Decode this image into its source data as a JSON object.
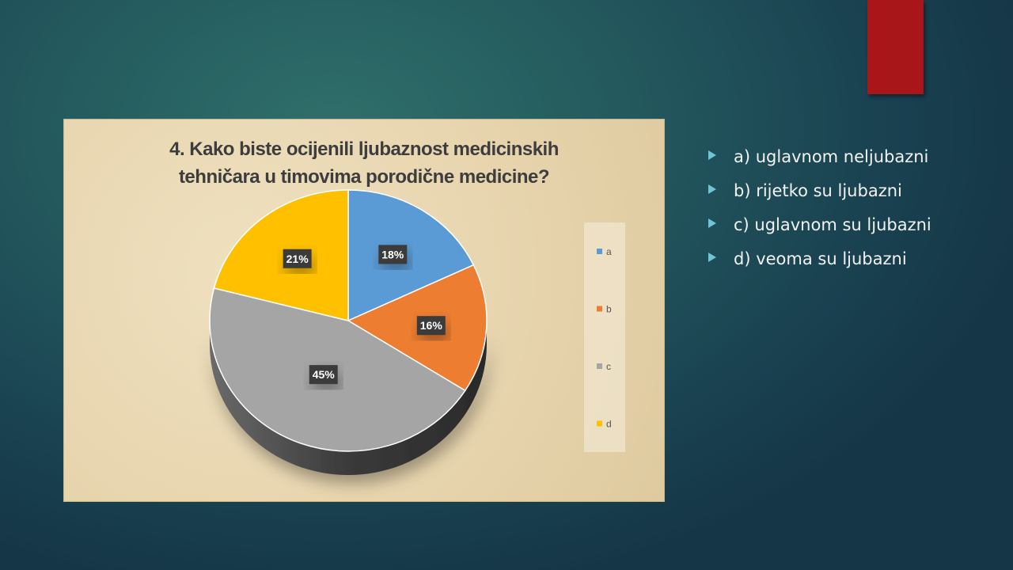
{
  "slide": {
    "accent_tab_color": "#a8161a",
    "bullet_icon": "triangle-right-icon",
    "bullets": [
      "a) uglavnom neljubazni",
      "b) rijetko su ljubazni",
      "c) uglavnom su ljubazni",
      "d) veoma su ljubazni"
    ]
  },
  "chart_data": {
    "type": "pie",
    "style": "3d",
    "title_lines": [
      "4. Kako biste ocijenili ljubaznost medicinskih",
      "tehničara u timovima porodične medicine?"
    ],
    "categories": [
      "a",
      "b",
      "c",
      "d"
    ],
    "values": [
      18,
      16,
      45,
      21
    ],
    "data_labels": [
      "18%",
      "16%",
      "45%",
      "21%"
    ],
    "colors": [
      "#5b9bd5",
      "#ed7d31",
      "#a5a5a5",
      "#ffc000"
    ],
    "legend_placement": "right"
  }
}
